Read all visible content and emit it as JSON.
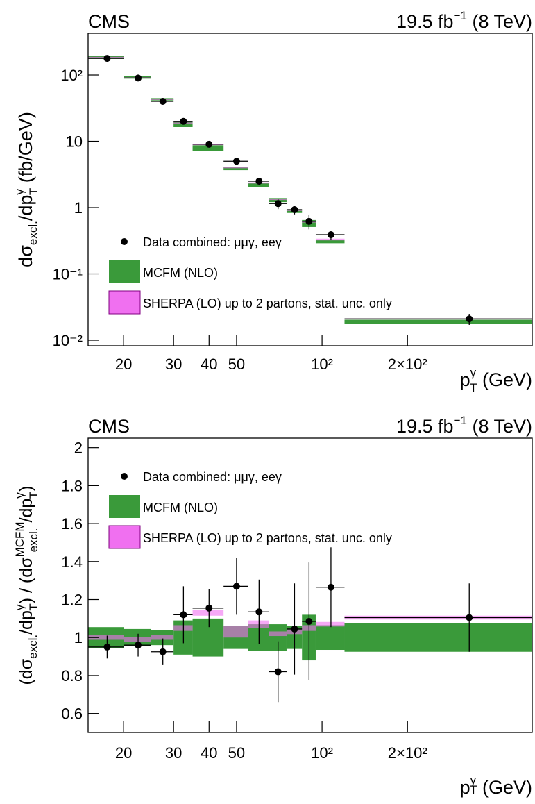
{
  "chart_data": [
    {
      "type": "binned",
      "title": "CMS",
      "lumi": [
        "19.5 fb",
        "−1",
        " (8 TeV)"
      ],
      "ylabel": [
        "dσ",
        "excl.",
        "/dp",
        "γ",
        "T",
        " (fb/GeV)"
      ],
      "xlabel": [
        "p",
        "γ",
        "T",
        " (GeV)"
      ],
      "xlog": true,
      "ylog": true,
      "legend": "lower left",
      "bins": [
        15,
        20,
        25,
        30,
        35,
        45,
        55,
        65,
        75,
        85,
        95,
        120,
        550
      ],
      "x": [
        17.5,
        22.5,
        27.5,
        32.5,
        40,
        50,
        60,
        70,
        80,
        90,
        107.5,
        330
      ],
      "xlim": [
        15,
        550
      ],
      "xticks": [
        20,
        30,
        40,
        50,
        {
          "value": 100,
          "label": "10²"
        },
        {
          "value": 200,
          "label": "2×10²"
        }
      ],
      "ylim": [
        0.00825,
        425
      ],
      "yticks": [
        {
          "value": 100,
          "label": "10²"
        },
        10,
        1,
        {
          "value": 0.1,
          "label": "10⁻¹"
        },
        {
          "value": 0.01,
          "label": "10⁻²"
        }
      ],
      "series": [
        {
          "name": "Data combined: μμγ, eeγ",
          "style": "points",
          "color": "#000000",
          "values": [
            178,
            90,
            40,
            20,
            9,
            5.0,
            2.5,
            1.15,
            0.93,
            0.62,
            0.39,
            0.021
          ],
          "errors": [
            8,
            5,
            3,
            2,
            0.8,
            0.6,
            0.3,
            0.2,
            0.14,
            0.15,
            0.06,
            0.004
          ]
        },
        {
          "name": "MCFM (NLO)",
          "style": "band",
          "color": "#3a9a3a",
          "values": [
            185,
            92,
            43,
            18,
            7.9,
            3.9,
            2.2,
            1.3,
            0.88,
            0.58,
            0.31,
            0.019
          ],
          "errors": [
            10,
            4,
            1.7,
            1.6,
            0.8,
            0.23,
            0.15,
            0.09,
            0.05,
            0.07,
            0.02,
            0.0014
          ]
        },
        {
          "name": "SHERPA (LO) up to 2 partons, stat. unc. only",
          "style": "band",
          "color": "#f070f0",
          "values": [
            185,
            91,
            43,
            18.8,
            8.9,
            4.0,
            2.35,
            1.33,
            0.91,
            0.61,
            0.33,
            0.021
          ],
          "errors": [
            3,
            1.4,
            0.6,
            0.4,
            0.15,
            0.08,
            0.05,
            0.03,
            0.02,
            0.015,
            0.01,
            0.0003
          ]
        }
      ]
    },
    {
      "type": "binned",
      "title": "CMS",
      "lumi": [
        "19.5 fb",
        "−1",
        " (8 TeV)"
      ],
      "ylabel": [
        "(dσ",
        "excl.",
        "/dp",
        "γ",
        "T",
        ") / (dσ",
        "MCFM",
        "excl.",
        "/dp",
        "γ",
        "T",
        ")"
      ],
      "xlabel": [
        "p",
        "γ",
        "T",
        " (GeV)"
      ],
      "xlog": true,
      "ylog": false,
      "legend": "upper left",
      "bins": [
        15,
        20,
        25,
        30,
        35,
        45,
        55,
        65,
        75,
        85,
        95,
        120,
        550
      ],
      "x": [
        17.5,
        22.5,
        27.5,
        32.5,
        40,
        50,
        60,
        70,
        80,
        90,
        107.5,
        330
      ],
      "xlim": [
        15,
        550
      ],
      "xticks": [
        20,
        30,
        40,
        50,
        {
          "value": 100,
          "label": "10²"
        },
        {
          "value": 200,
          "label": "2×10²"
        }
      ],
      "ylim": [
        0.5,
        2.05
      ],
      "yticks": [
        0.6,
        0.8,
        1,
        1.2,
        1.4,
        1.6,
        1.8,
        2
      ],
      "series": [
        {
          "name": "Data combined: μμγ, eeγ",
          "style": "points",
          "color": "#000000",
          "values": [
            0.95,
            0.96,
            0.925,
            1.12,
            1.155,
            1.27,
            1.135,
            0.82,
            1.045,
            1.085,
            1.265,
            1.105
          ],
          "errors": [
            0.06,
            0.06,
            0.07,
            0.15,
            0.1,
            0.15,
            0.17,
            0.16,
            0.24,
            0.31,
            0.21,
            0.18
          ]
        },
        {
          "name": "MCFM (NLO)",
          "style": "band",
          "color": "#3a9a3a",
          "values": [
            1,
            1,
            1,
            1,
            1,
            1,
            1,
            1,
            1,
            1,
            1,
            1
          ],
          "errors": [
            0.055,
            0.045,
            0.04,
            0.09,
            0.1,
            0.06,
            0.07,
            0.07,
            0.06,
            0.12,
            0.065,
            0.075
          ]
        },
        {
          "name": "SHERPA (LO) up to 2 partons, stat. unc. only",
          "style": "band",
          "color": "#f070f0",
          "values": [
            1.0,
            0.99,
            1.0,
            1.05,
            1.13,
            1.03,
            1.07,
            1.02,
            1.03,
            1.05,
            1.07,
            1.105
          ],
          "errors": [
            0.012,
            0.012,
            0.012,
            0.015,
            0.015,
            0.03,
            0.02,
            0.012,
            0.012,
            0.015,
            0.012,
            0.01
          ]
        }
      ]
    }
  ]
}
